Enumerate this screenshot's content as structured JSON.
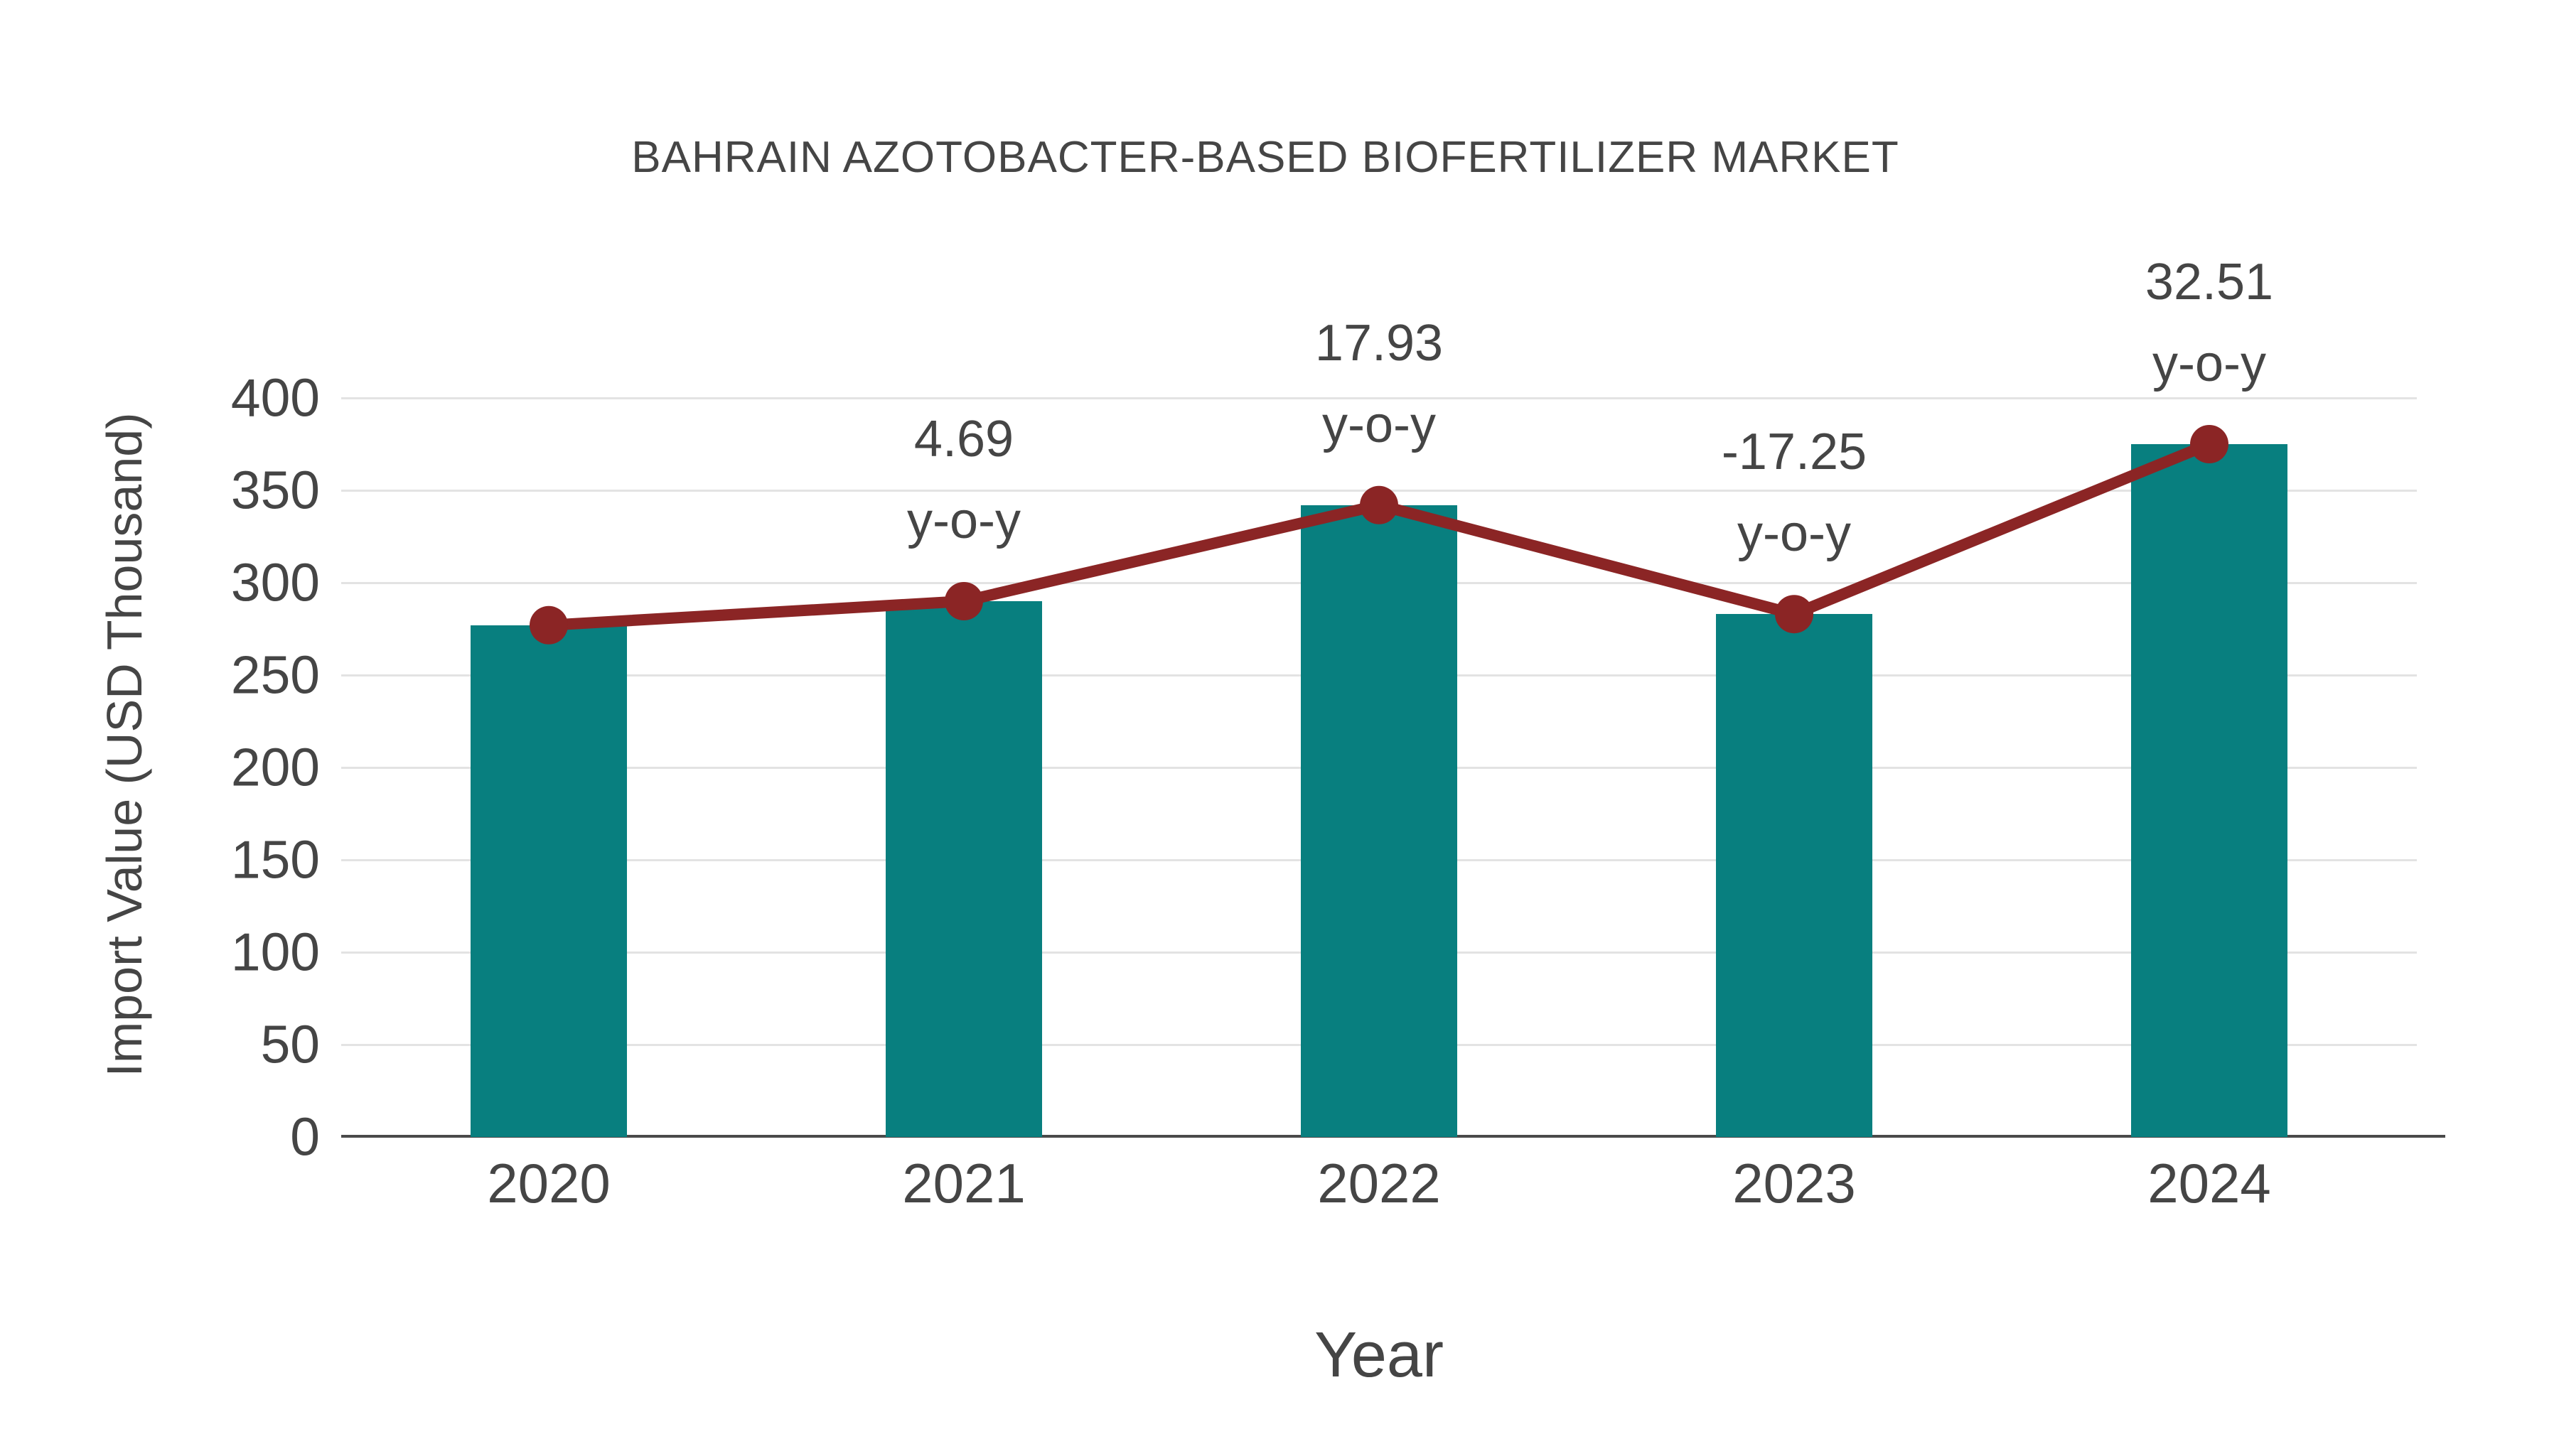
{
  "chart_data": {
    "type": "bar",
    "title": "BAHRAIN AZOTOBACTER-BASED BIOFERTILIZER MARKET",
    "xlabel": "Year",
    "ylabel": "Import Value (USD Thousand)",
    "categories": [
      "2020",
      "2021",
      "2022",
      "2023",
      "2024"
    ],
    "ylim": [
      0,
      400
    ],
    "yticks": [
      0,
      50,
      100,
      150,
      200,
      250,
      300,
      350,
      400
    ],
    "grid": "horizontal-only",
    "legend_position": "none",
    "series": [
      {
        "name": "Import Value (USD Thousand)",
        "type": "bar",
        "color": "#087F7F",
        "values": [
          277,
          290,
          342,
          283,
          375
        ]
      },
      {
        "name": "y-o-y growth",
        "type": "line",
        "color": "#8B2525",
        "values": [
          277,
          290,
          342,
          283,
          375
        ],
        "point_labels": [
          "",
          "4.69",
          "17.93",
          "-17.25",
          "32.51"
        ],
        "point_label_suffix": "y-o-y"
      }
    ],
    "colors": {
      "bar": "#087F7F",
      "line": "#8B2525",
      "grid": "#e3e3e3",
      "axis": "#4a4a4a",
      "text": "#454545"
    }
  }
}
